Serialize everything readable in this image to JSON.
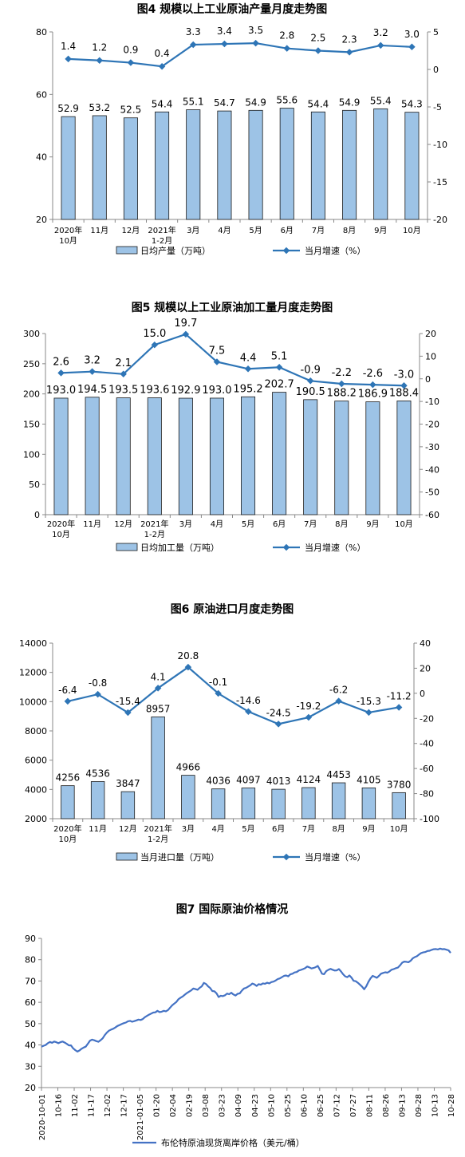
{
  "chart_data": [
    {
      "type": "bar",
      "title": "图4  规模以上工业原油产量月度走势图",
      "categories": [
        [
          "2020年",
          "10月"
        ],
        [
          "11月"
        ],
        [
          "12月"
        ],
        [
          "2021年",
          "1-2月"
        ],
        [
          "3月"
        ],
        [
          "4月"
        ],
        [
          "5月"
        ],
        [
          "6月"
        ],
        [
          "7月"
        ],
        [
          "8月"
        ],
        [
          "9月"
        ],
        [
          "10月"
        ]
      ],
      "series": [
        {
          "name": "日均产量（万吨）",
          "type": "bar",
          "axis": "left",
          "values": [
            52.9,
            53.2,
            52.5,
            54.4,
            55.1,
            54.7,
            54.9,
            55.6,
            54.4,
            54.9,
            55.4,
            54.3
          ],
          "labels": [
            "52.9",
            "53.2",
            "52.5",
            "54.4",
            "55.1",
            "54.7",
            "54.9",
            "55.6",
            "54.4",
            "54.9",
            "55.4",
            "54.3"
          ]
        },
        {
          "name": "当月增速（%）",
          "type": "line",
          "axis": "right",
          "values": [
            1.4,
            1.2,
            0.9,
            0.4,
            3.3,
            3.4,
            3.5,
            2.8,
            2.5,
            2.3,
            3.2,
            3.0
          ],
          "labels": [
            "1.4",
            "1.2",
            "0.9",
            "0.4",
            "3.3",
            "3.4",
            "3.5",
            "2.8",
            "2.5",
            "2.3",
            "3.2",
            "3.0"
          ]
        }
      ],
      "y_left": {
        "min": 20,
        "max": 80,
        "ticks": [
          "80",
          "60",
          "40",
          "20"
        ]
      },
      "y_right": {
        "min": -20,
        "max": 5,
        "ticks": [
          "5",
          "0",
          "-5",
          "-10",
          "-15",
          "-20"
        ]
      },
      "legend": "bottom",
      "colors": {
        "bar": "#9DC3E6",
        "bar_stroke": "#1a1a1a",
        "line": "#2E75B6"
      }
    },
    {
      "type": "bar",
      "title": "图5  规模以上工业原油加工量月度走势图",
      "categories": [
        [
          "2020年",
          "10月"
        ],
        [
          "11月"
        ],
        [
          "12月"
        ],
        [
          "2021年",
          "1-2月"
        ],
        [
          "3月"
        ],
        [
          "4月"
        ],
        [
          "5月"
        ],
        [
          "6月"
        ],
        [
          "7月"
        ],
        [
          "8月"
        ],
        [
          "9月"
        ],
        [
          "10月"
        ]
      ],
      "series": [
        {
          "name": "日均加工量（万吨）",
          "type": "bar",
          "axis": "left",
          "values": [
            193.0,
            194.5,
            193.5,
            193.6,
            192.9,
            193.0,
            195.2,
            202.7,
            190.5,
            188.2,
            186.9,
            188.4
          ],
          "labels": [
            "193.0",
            "194.5",
            "193.5",
            "193.6",
            "192.9",
            "193.0",
            "195.2",
            "202.7",
            "190.5",
            "188.2",
            "186.9",
            "188.4"
          ]
        },
        {
          "name": "当月增速（%）",
          "type": "line",
          "axis": "right",
          "values": [
            2.6,
            3.2,
            2.1,
            15.0,
            19.7,
            7.5,
            4.4,
            5.1,
            -0.9,
            -2.2,
            -2.6,
            -3.0
          ],
          "labels": [
            "2.6",
            "3.2",
            "2.1",
            "15.0",
            "19.7",
            "7.5",
            "4.4",
            "5.1",
            "-0.9",
            "-2.2",
            "-2.6",
            "-3.0"
          ]
        }
      ],
      "y_left": {
        "min": 0,
        "max": 300,
        "ticks": [
          "300",
          "250",
          "200",
          "150",
          "100",
          "50",
          "0"
        ]
      },
      "y_right": {
        "min": -60,
        "max": 20,
        "ticks": [
          "20",
          "10",
          "0",
          "-10",
          "-20",
          "-30",
          "-40",
          "-50",
          "-60"
        ]
      },
      "legend": "bottom",
      "colors": {
        "bar": "#9DC3E6",
        "bar_stroke": "#1a1a1a",
        "line": "#2E75B6"
      }
    },
    {
      "type": "bar",
      "title": "图6  原油进口月度走势图",
      "categories": [
        [
          "2020年",
          "10月"
        ],
        [
          "11月"
        ],
        [
          "12月"
        ],
        [
          "2021年",
          "1-2月"
        ],
        [
          "3月"
        ],
        [
          "4月"
        ],
        [
          "5月"
        ],
        [
          "6月"
        ],
        [
          "7月"
        ],
        [
          "8月"
        ],
        [
          "9月"
        ],
        [
          "10月"
        ]
      ],
      "series": [
        {
          "name": "当月进口量（万吨）",
          "type": "bar",
          "axis": "left",
          "values": [
            4256,
            4536,
            3847,
            8957,
            4966,
            4036,
            4097,
            4013,
            4124,
            4453,
            4105,
            3780
          ],
          "labels": [
            "4256",
            "4536",
            "3847",
            "8957",
            "4966",
            "4036",
            "4097",
            "4013",
            "4124",
            "4453",
            "4105",
            "3780"
          ]
        },
        {
          "name": "当月增速（%）",
          "type": "line",
          "axis": "right",
          "values": [
            -6.4,
            -0.8,
            -15.4,
            4.1,
            20.8,
            -0.1,
            -14.6,
            -24.5,
            -19.2,
            -6.2,
            -15.3,
            -11.2
          ],
          "labels": [
            "-6.4",
            "-0.8",
            "-15.4",
            "4.1",
            "20.8",
            "-0.1",
            "-14.6",
            "-24.5",
            "-19.2",
            "-6.2",
            "-15.3",
            "-11.2"
          ]
        }
      ],
      "y_left": {
        "min": 2000,
        "max": 14000,
        "ticks": [
          "14000",
          "12000",
          "10000",
          "8000",
          "6000",
          "4000",
          "2000"
        ]
      },
      "y_right": {
        "min": -100,
        "max": 40,
        "ticks": [
          "40",
          "20",
          "0",
          "-20",
          "-40",
          "-60",
          "-80",
          "-100"
        ]
      },
      "legend": "bottom",
      "colors": {
        "bar": "#9DC3E6",
        "bar_stroke": "#1a1a1a",
        "line": "#2E75B6"
      }
    },
    {
      "type": "line",
      "title": "图7  国际原油价格情况",
      "series": [
        {
          "name": "布伦特原油现货离岸价格（美元/桶）",
          "values": [
            39.2,
            39.6,
            40.0,
            40.8,
            41.4,
            41.0,
            41.6,
            41.3,
            40.8,
            41.3,
            41.6,
            41.1,
            40.5,
            39.8,
            39.8,
            38.4,
            37.6,
            36.9,
            37.4,
            38.2,
            38.8,
            39.2,
            40.6,
            42.0,
            42.5,
            42.2,
            41.8,
            41.5,
            42.2,
            43.1,
            44.6,
            45.8,
            46.7,
            47.2,
            47.6,
            48.2,
            48.9,
            49.3,
            49.8,
            50.2,
            50.5,
            51.1,
            51.3,
            50.9,
            51.2,
            51.5,
            51.9,
            51.7,
            52.1,
            53.0,
            53.6,
            54.2,
            54.7,
            55.2,
            55.3,
            56.0,
            55.4,
            55.6,
            56.0,
            55.8,
            56.4,
            57.5,
            58.6,
            59.4,
            60.2,
            61.5,
            62.2,
            62.8,
            63.6,
            64.4,
            65.0,
            65.6,
            66.5,
            66.2,
            65.9,
            66.8,
            67.5,
            69.1,
            68.6,
            67.5,
            66.7,
            65.3,
            65.2,
            64.2,
            62.5,
            63.1,
            62.9,
            63.3,
            64.1,
            63.8,
            64.5,
            63.7,
            63.2,
            64.0,
            64.2,
            65.5,
            66.5,
            66.8,
            67.4,
            68.0,
            68.8,
            68.4,
            67.7,
            68.5,
            68.3,
            68.9,
            68.7,
            69.2,
            68.9,
            69.5,
            69.7,
            70.2,
            70.9,
            71.2,
            71.8,
            72.4,
            72.6,
            72.2,
            73.1,
            73.4,
            74.0,
            74.2,
            74.9,
            75.2,
            75.6,
            76.0,
            76.8,
            76.4,
            75.9,
            76.1,
            76.5,
            77.1,
            75.3,
            73.4,
            73.2,
            74.6,
            75.2,
            75.7,
            75.3,
            74.9,
            75.0,
            75.6,
            74.5,
            73.2,
            72.2,
            71.8,
            72.6,
            71.6,
            70.1,
            69.9,
            69.2,
            68.3,
            67.4,
            66.1,
            67.5,
            69.6,
            71.2,
            72.4,
            72.0,
            71.5,
            72.4,
            73.4,
            73.8,
            74.1,
            73.9,
            74.5,
            75.3,
            75.6,
            76.0,
            76.3,
            77.3,
            78.6,
            79.1,
            79.0,
            78.8,
            79.5,
            80.6,
            81.2,
            81.6,
            82.4,
            83.1,
            83.4,
            83.6,
            84.1,
            84.2,
            84.6,
            84.9,
            85.0,
            84.8,
            85.2,
            84.9,
            85.0,
            84.7,
            84.4,
            83.2
          ]
        }
      ],
      "x_ticks": [
        "2020-10-01",
        "10-16",
        "11-02",
        "11-17",
        "12-02",
        "12-17",
        "2021-01-05",
        "01-20",
        "02-04",
        "02-19",
        "03-08",
        "03-23",
        "04-09",
        "04-23",
        "05-10",
        "05-25",
        "06-10",
        "06-25",
        "07-12",
        "07-27",
        "08-11",
        "08-26",
        "09-13",
        "09-28",
        "10-13",
        "10-28"
      ],
      "y": {
        "min": 20,
        "max": 90,
        "ticks": [
          "90",
          "80",
          "70",
          "60",
          "50",
          "40",
          "30",
          "20"
        ]
      },
      "grid": false,
      "legend": "bottom",
      "colors": {
        "line": "#4472C4"
      }
    }
  ]
}
